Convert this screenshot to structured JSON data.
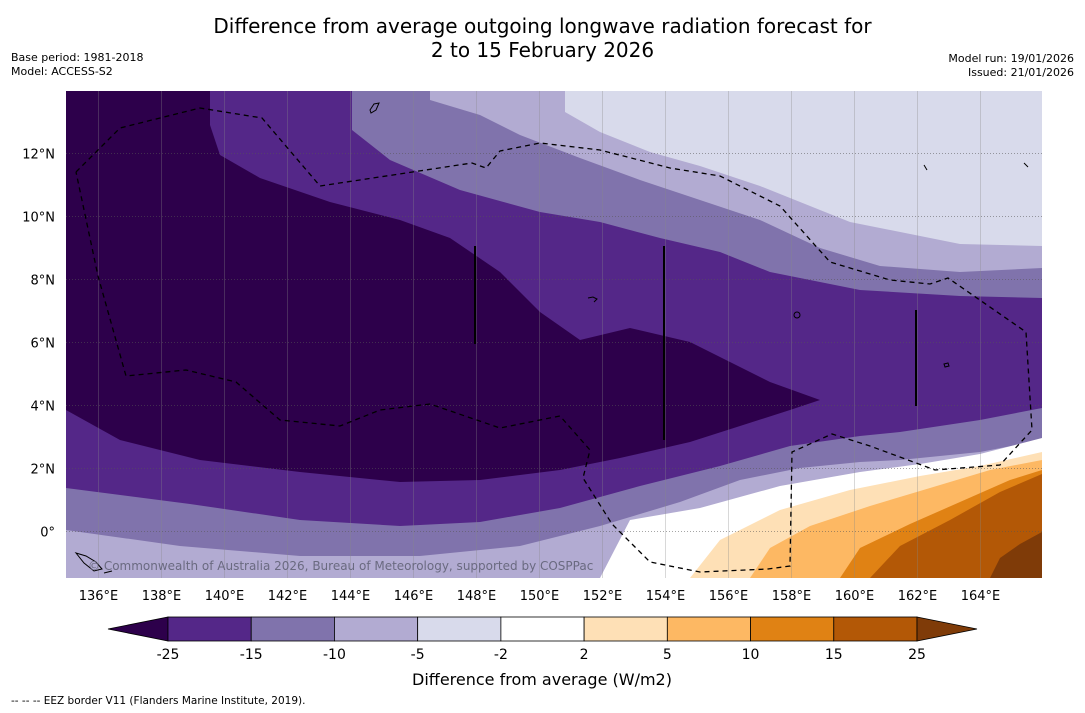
{
  "title": {
    "line1": "Difference from average outgoing longwave radiation forecast for",
    "line2": "2 to 15 February 2026"
  },
  "meta": {
    "base_period": "Base period: 1981-2018",
    "model": "Model: ACCESS-S2",
    "model_run": "Model run: 19/01/2026",
    "issued": "Issued: 21/01/2026"
  },
  "map": {
    "lon_labels": [
      "136°E",
      "138°E",
      "140°E",
      "142°E",
      "144°E",
      "146°E",
      "148°E",
      "150°E",
      "152°E",
      "154°E",
      "156°E",
      "158°E",
      "160°E",
      "162°E",
      "164°E"
    ],
    "lat_labels": [
      "12°N",
      "10°N",
      "8°N",
      "6°N",
      "4°N",
      "2°N",
      "0°"
    ],
    "copyright": "© Commonwealth of Australia 2026, Bureau of Meteorology, supported by COSPPac"
  },
  "legend": {
    "title": "Difference from average (W/m2)",
    "ticks": [
      "-25",
      "-15",
      "-10",
      "-5",
      "-2",
      "2",
      "5",
      "10",
      "15",
      "25"
    ],
    "colors": {
      "below": "#2d004b",
      "bins": [
        "#542788",
        "#8073ac",
        "#b2abd2",
        "#d8daeb",
        "#ffffff",
        "#fee0b6",
        "#fdb863",
        "#e08214",
        "#b35806"
      ],
      "above": "#7f3b08"
    }
  },
  "footnote": "-- -- -- EEZ border V11 (Flanders Marine Institute, 2019)."
}
